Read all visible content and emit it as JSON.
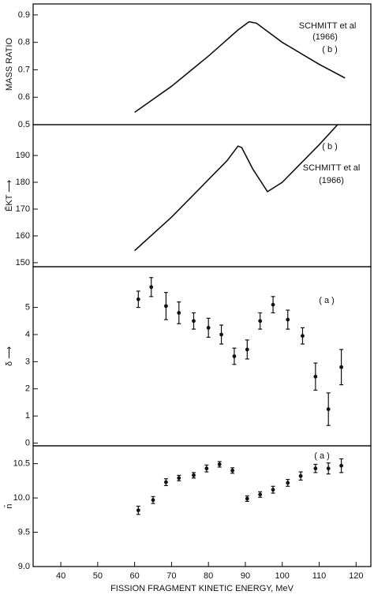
{
  "chart_data": [
    {
      "type": "line",
      "ylabel": "MASS RATIO",
      "annotations": [
        "SCHMITT et al",
        "(1966)",
        "( b )"
      ],
      "xlim": [
        32.5,
        124
      ],
      "ylim": [
        0.5,
        0.94
      ],
      "yticks": [
        0.5,
        0.6,
        0.7,
        0.8,
        0.9
      ],
      "x": [
        60,
        70,
        80,
        88,
        91,
        93,
        100,
        110,
        117
      ],
      "series": [
        {
          "color": "#111111",
          "values": [
            0.545,
            0.64,
            0.75,
            0.845,
            0.875,
            0.87,
            0.8,
            0.72,
            0.67
          ]
        }
      ]
    },
    {
      "type": "line",
      "ylabel": "ĒKT ⟶",
      "annotations": [
        "( b )",
        "SCHMITT et al",
        "(1966)"
      ],
      "xlim": [
        32.5,
        124
      ],
      "ylim": [
        148.5,
        201.5
      ],
      "yticks": [
        150,
        160,
        170,
        180,
        190
      ],
      "x": [
        60,
        70,
        75,
        80,
        85,
        88,
        89,
        92,
        96,
        100,
        105,
        110,
        114,
        115
      ],
      "series": [
        {
          "color": "#111111",
          "values": [
            154.5,
            167,
            174,
            181,
            188,
            193.5,
            193,
            185,
            176.5,
            180,
            187,
            194,
            200,
            201.5
          ]
        }
      ]
    },
    {
      "type": "errorbar",
      "ylabel": "δ ⟶",
      "annotations": [
        "( a )"
      ],
      "xlim": [
        32.5,
        124
      ],
      "ylim": [
        -0.1,
        6.5
      ],
      "yticks": [
        0,
        1,
        2,
        3,
        4,
        5
      ],
      "x": [
        61,
        64.5,
        68.5,
        72,
        76,
        80,
        83.5,
        87,
        90.5,
        94,
        97.5,
        101.5,
        105.5,
        109,
        112.5,
        116
      ],
      "series": [
        {
          "color": "#111111",
          "values": [
            5.3,
            5.75,
            5.05,
            4.8,
            4.5,
            4.25,
            4.0,
            3.2,
            3.45,
            4.5,
            5.1,
            4.55,
            3.95,
            2.45,
            1.25,
            2.8
          ],
          "errors": [
            0.3,
            0.35,
            0.5,
            0.4,
            0.3,
            0.35,
            0.35,
            0.3,
            0.35,
            0.3,
            0.3,
            0.35,
            0.3,
            0.5,
            0.6,
            0.65
          ]
        }
      ]
    },
    {
      "type": "errorbar",
      "ylabel": "n̄",
      "annotations": [
        "( a )"
      ],
      "xlabel": "FISSION FRAGMENT KINETIC ENERGY, MeV",
      "xlim": [
        32.5,
        124
      ],
      "xticks": [
        40,
        50,
        60,
        70,
        80,
        90,
        100,
        110,
        120
      ],
      "ylim": [
        9.0,
        10.76
      ],
      "yticks": [
        {
          "value": 9.0,
          "label": "9.0"
        },
        9.5,
        {
          "value": 10.0,
          "label": "10.0"
        },
        10.5
      ],
      "x": [
        61,
        65,
        68.5,
        72,
        76,
        79.5,
        83,
        86.5,
        90.5,
        94,
        97.5,
        101.5,
        105,
        109,
        112.5,
        116
      ],
      "series": [
        {
          "color": "#111111",
          "values": [
            9.82,
            9.97,
            10.23,
            10.29,
            10.33,
            10.43,
            10.49,
            10.4,
            9.99,
            10.05,
            10.12,
            10.22,
            10.32,
            10.43,
            10.43,
            10.47
          ],
          "errors": [
            0.06,
            0.05,
            0.05,
            0.04,
            0.04,
            0.05,
            0.04,
            0.04,
            0.04,
            0.04,
            0.05,
            0.05,
            0.06,
            0.06,
            0.08,
            0.1
          ]
        }
      ]
    }
  ]
}
